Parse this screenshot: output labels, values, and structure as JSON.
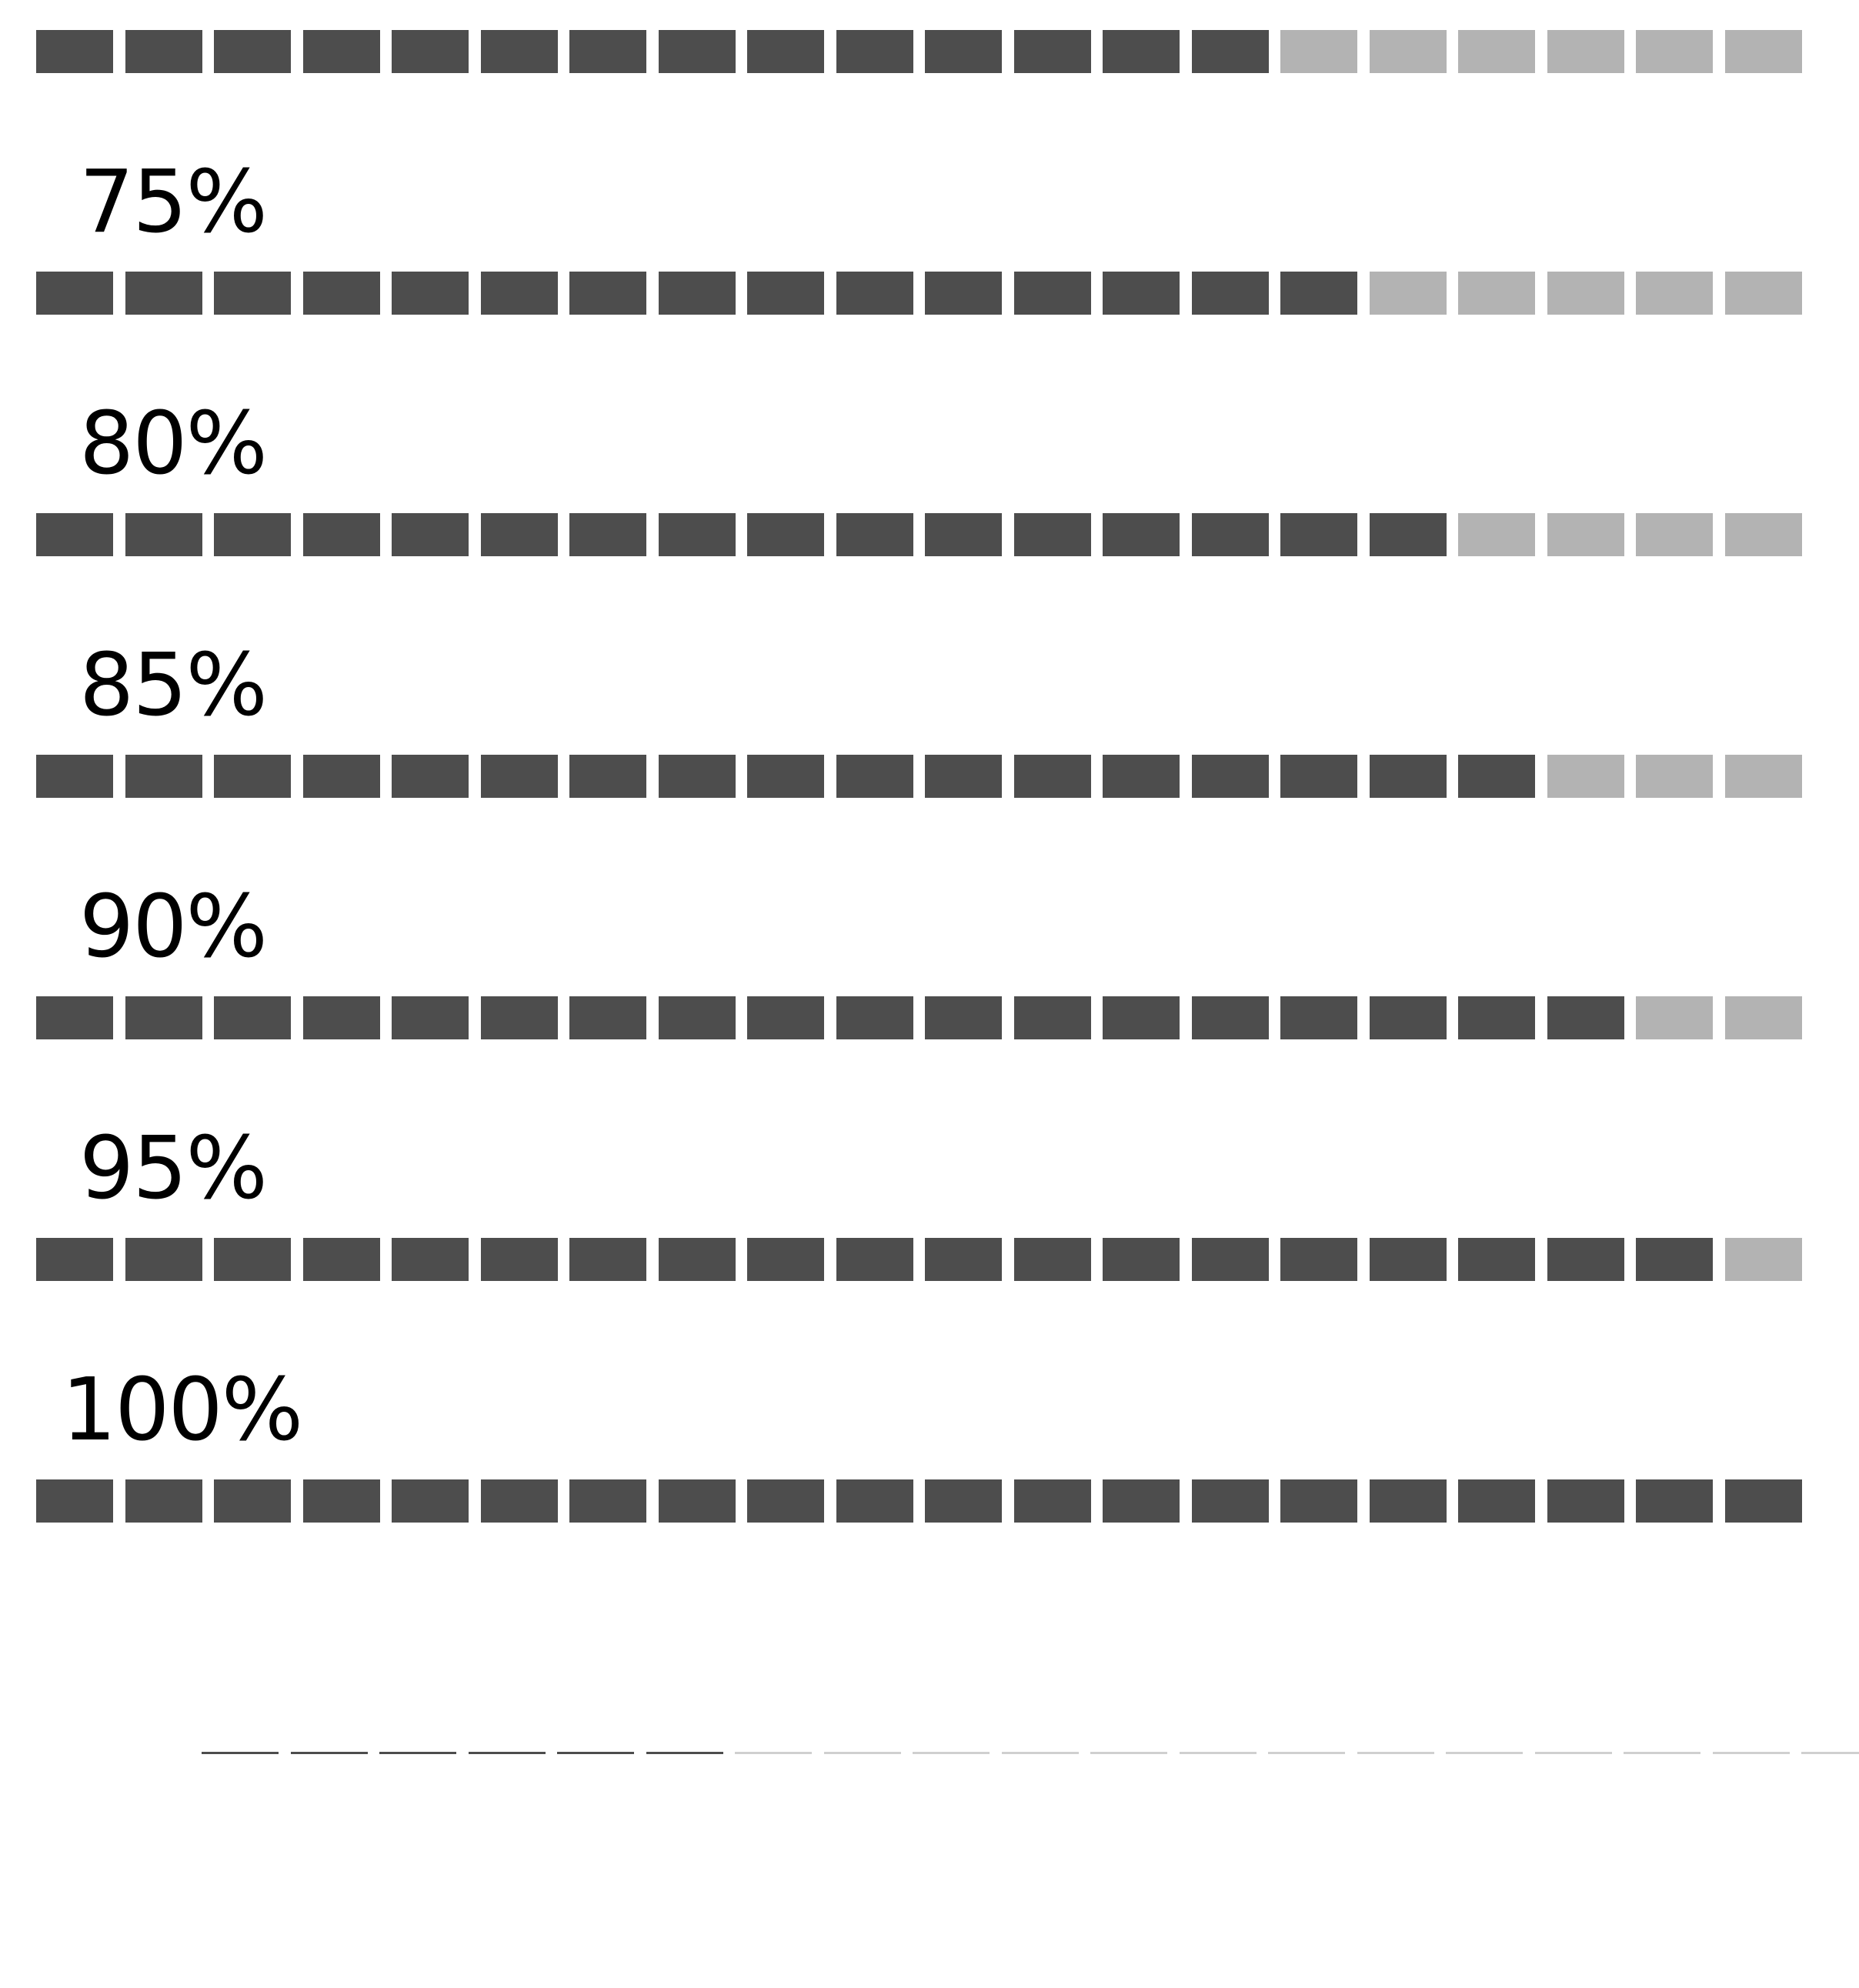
{
  "colors": {
    "filled": "#4d4d4d",
    "empty": "#b3b3b3",
    "thin_filled": "#4d4d4d",
    "thin_empty": "#d0d0d0",
    "background": "#ffffff",
    "label": "#000000"
  },
  "segments_per_bar": 20,
  "meters": [
    {
      "label": "",
      "filled": 14
    },
    {
      "label": "75%",
      "filled": 15
    },
    {
      "label": "80%",
      "filled": 16
    },
    {
      "label": "85%",
      "filled": 17
    },
    {
      "label": "90%",
      "filled": 18
    },
    {
      "label": "95%",
      "filled": 19
    },
    {
      "label": "100%",
      "filled": 20
    }
  ],
  "thin_meter": {
    "segments": 19,
    "filled": 6
  }
}
